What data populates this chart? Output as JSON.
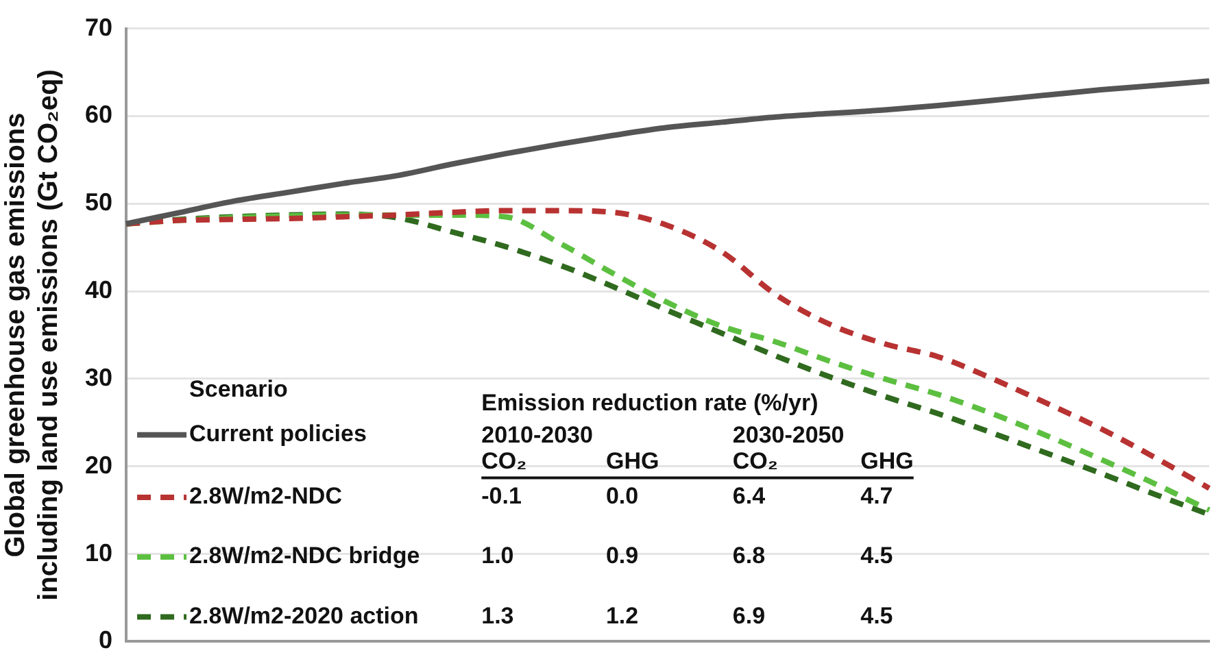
{
  "chart_data": {
    "type": "line",
    "ylabel": "Global greenhouse gas emissions including land use emissions (Gt CO₂eq)",
    "legend_title": "Scenario",
    "legend": "bottom left",
    "grid": "y",
    "tick_labels": "y",
    "marker": "none",
    "categories": [
      null,
      null,
      null,
      null,
      null,
      null,
      null,
      null,
      null,
      null,
      null,
      null,
      null,
      null,
      null,
      null,
      null,
      null,
      null,
      null,
      null
    ],
    "ylim": [
      0,
      70
    ],
    "yticks": [
      0,
      10,
      20,
      30,
      40,
      50,
      60,
      70
    ],
    "series": [
      {
        "name": "Current policies",
        "color": "#555555",
        "line_style": "solid",
        "values": [
          47.7,
          49.0,
          50.3,
          51.3,
          52.3,
          53.2,
          54.5,
          55.7,
          56.8,
          57.8,
          58.7,
          59.3,
          59.9,
          60.3,
          60.7,
          61.2,
          61.8,
          62.4,
          63.0,
          63.5,
          64.0
        ]
      },
      {
        "name": "2.8W/m2-NDC",
        "color": "#b83232",
        "line_style": "dashed",
        "values": [
          47.7,
          48.1,
          48.2,
          48.3,
          48.5,
          48.7,
          49.0,
          49.2,
          49.2,
          49.0,
          47.5,
          44.5,
          39.6,
          36.2,
          34.0,
          32.5,
          30.0,
          27.2,
          24.3,
          21.0,
          17.5
        ]
      },
      {
        "name": "2.8W/m2-NDC bridge",
        "color": "#5cbf40",
        "line_style": "dashed",
        "values": [
          47.7,
          48.1,
          48.4,
          48.6,
          48.7,
          48.7,
          48.7,
          48.5,
          45.5,
          42.0,
          38.7,
          36.0,
          34.2,
          32.0,
          30.0,
          28.2,
          26.0,
          23.5,
          20.8,
          18.0,
          15.0
        ]
      },
      {
        "name": "2.8W/m2-2020 action",
        "color": "#2f6a1e",
        "line_style": "dashed",
        "values": [
          47.7,
          48.2,
          48.5,
          48.7,
          48.8,
          48.4,
          46.8,
          45.1,
          43.0,
          40.5,
          37.8,
          35.2,
          32.6,
          30.2,
          28.0,
          26.0,
          23.8,
          21.5,
          19.2,
          16.8,
          14.5
        ]
      }
    ],
    "annotations": [
      "Emission reduction rate (%/yr)",
      "2010-2030",
      "2030-2050",
      "CO₂",
      "GHG",
      "CO₂",
      "GHG",
      "-0.1",
      "0.0",
      "6.4",
      "4.7",
      "1.0",
      "0.9",
      "6.8",
      "4.5",
      "1.3",
      "1.2",
      "6.9",
      "4.5"
    ]
  }
}
